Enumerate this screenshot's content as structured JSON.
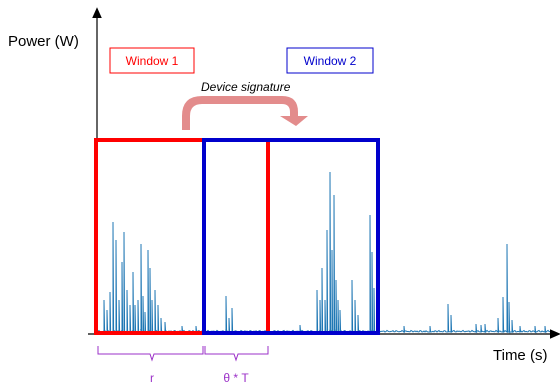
{
  "axes": {
    "y_title": "Power (W)",
    "x_title": "Time (s)"
  },
  "windows": [
    {
      "label": "Window 1",
      "color": "#ff0000"
    },
    {
      "label": "Window 2",
      "color": "#0000cc"
    }
  ],
  "signature_label": "Device signature",
  "arrow_color": "#e08080",
  "signal_color": "#1f77b4",
  "brace_color": "#9b30c8",
  "braces": {
    "first_label": "r",
    "second_label": "θ * T"
  }
}
